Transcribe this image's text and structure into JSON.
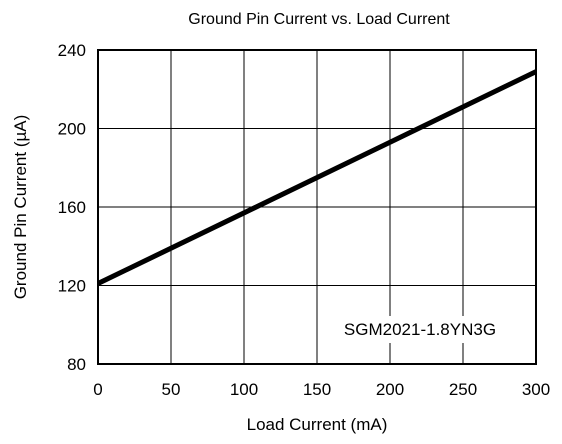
{
  "chart_data": {
    "type": "line",
    "title": "Ground Pin Current vs. Load Current",
    "xlabel": "Load Current (mA)",
    "ylabel": "Ground Pin Current (µA)",
    "xlim": [
      0,
      300
    ],
    "ylim": [
      80,
      240
    ],
    "xticks": [
      0,
      50,
      100,
      150,
      200,
      250,
      300
    ],
    "yticks": [
      80,
      120,
      160,
      200,
      240
    ],
    "grid": true,
    "annotation": "SGM2021-1.8YN3G",
    "series": [
      {
        "x": [
          0,
          300
        ],
        "y": [
          121,
          229
        ]
      }
    ]
  }
}
